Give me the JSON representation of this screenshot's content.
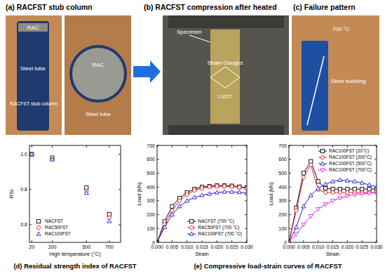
{
  "photos": {
    "a": {
      "title": "(a) RACFST stub column",
      "side_labels": [
        "RAC",
        "Steel tube",
        "RACFST stub column"
      ],
      "top_labels": [
        "RAC",
        "Steel tube"
      ]
    },
    "b": {
      "title": "(b) RACFST compression after heated",
      "labels": [
        "Specimen",
        "Strain Gauges",
        "LVDT"
      ]
    },
    "c": {
      "title": "(c) Failure pattern",
      "labels": [
        "700 °C",
        "Steel buckling"
      ]
    }
  },
  "captions": [
    "(d) Residual strength index of RACFST",
    "(e) Compressive load-strain curves of RACFST"
  ],
  "chart_data": [
    {
      "type": "scatter",
      "x_label": "High temperature (°C)",
      "y_label": "RSI",
      "x": [
        20,
        200,
        500,
        700
      ],
      "xlim": [
        0,
        800
      ],
      "xticks": [
        20,
        200,
        500,
        700
      ],
      "ylim": [
        0.5,
        1.05
      ],
      "yticks": [
        0.6,
        0.8,
        {
          "value": 1.0,
          "label": "1.0"
        }
      ],
      "grid": false,
      "legend": "lower left",
      "series": [
        {
          "name": "NACFST",
          "color": "#000000",
          "marker": "square",
          "values": [
            1.0,
            0.98,
            0.81,
            0.66
          ]
        },
        {
          "name": "RAC50FST",
          "color": "#e8202a",
          "marker": "circle",
          "values": [
            1.0,
            0.97,
            0.79,
            0.64
          ]
        },
        {
          "name": "RAC100FST",
          "color": "#1a1adc",
          "marker": "triangle",
          "values": [
            1.0,
            0.97,
            0.78,
            0.62
          ]
        }
      ]
    },
    {
      "type": "line",
      "x_label": "Strain",
      "y_label": "Load (kN)",
      "x": [
        0,
        0.0025,
        0.005,
        0.0075,
        0.01,
        0.0125,
        0.015,
        0.0175,
        0.02,
        0.0225,
        0.025,
        0.0275,
        0.03
      ],
      "xlim": [
        0,
        0.03
      ],
      "xticks": [
        {
          "value": 0,
          "label": "0.000"
        },
        0.005,
        {
          "value": 0.01,
          "label": "0.010"
        },
        0.015,
        {
          "value": 0.02,
          "label": "0.020"
        },
        0.025,
        {
          "value": 0.03,
          "label": "0.030"
        }
      ],
      "ylim": [
        0,
        700
      ],
      "yticks": [
        0,
        100,
        200,
        300,
        400,
        500,
        600,
        700
      ],
      "grid": false,
      "legend": "lower right",
      "series": [
        {
          "name": "NACFST (700 °C)",
          "color": "#000000",
          "marker": "square",
          "values": [
            0,
            150,
            260,
            320,
            360,
            385,
            400,
            405,
            410,
            410,
            408,
            402,
            395
          ]
        },
        {
          "name": "RAC50FST (700 °C)",
          "color": "#e8202a",
          "marker": "circle",
          "values": [
            0,
            130,
            230,
            300,
            345,
            375,
            390,
            400,
            405,
            405,
            403,
            398,
            390
          ]
        },
        {
          "name": "RAC100FST (700 °C)",
          "color": "#1a1adc",
          "marker": "triangle",
          "values": [
            0,
            110,
            200,
            260,
            300,
            325,
            340,
            350,
            360,
            365,
            365,
            362,
            355
          ]
        }
      ]
    },
    {
      "type": "line",
      "x_label": "Strain",
      "y_label": "Load (kN)",
      "x": [
        0,
        0.0025,
        0.005,
        0.0075,
        0.01,
        0.0125,
        0.015,
        0.0175,
        0.02,
        0.0225,
        0.025,
        0.0275,
        0.03
      ],
      "xlim": [
        0,
        0.03
      ],
      "xticks": [
        {
          "value": 0,
          "label": "0.000"
        },
        0.005,
        {
          "value": 0.01,
          "label": "0.010"
        },
        0.015,
        {
          "value": 0.02,
          "label": "0.020"
        },
        0.025,
        {
          "value": 0.03,
          "label": "0.030"
        }
      ],
      "ylim": [
        0,
        700
      ],
      "yticks": [
        0,
        100,
        200,
        300,
        400,
        500,
        600,
        700
      ],
      "grid": false,
      "legend": "upper right",
      "series": [
        {
          "name": "RAC100FST (20°C)",
          "color": "#000000",
          "marker": "square",
          "values": [
            0,
            250,
            500,
            585,
            440,
            390,
            385,
            385,
            385,
            385,
            385,
            385,
            385
          ]
        },
        {
          "name": "RAC100FST (200°C)",
          "color": "#e8202a",
          "marker": "circle",
          "values": [
            0,
            230,
            470,
            560,
            380,
            360,
            360,
            360,
            360,
            360,
            360,
            360,
            360
          ]
        },
        {
          "name": "RAC100FST (500°C)",
          "color": "#1a1adc",
          "marker": "triangle",
          "values": [
            0,
            110,
            260,
            340,
            390,
            420,
            440,
            450,
            445,
            440,
            430,
            415,
            400
          ]
        },
        {
          "name": "RAC100FST (700°C)",
          "color": "#e020e0",
          "marker": "triangle-down",
          "values": [
            0,
            60,
            130,
            190,
            240,
            275,
            300,
            320,
            335,
            345,
            350,
            355,
            360
          ]
        }
      ]
    }
  ]
}
